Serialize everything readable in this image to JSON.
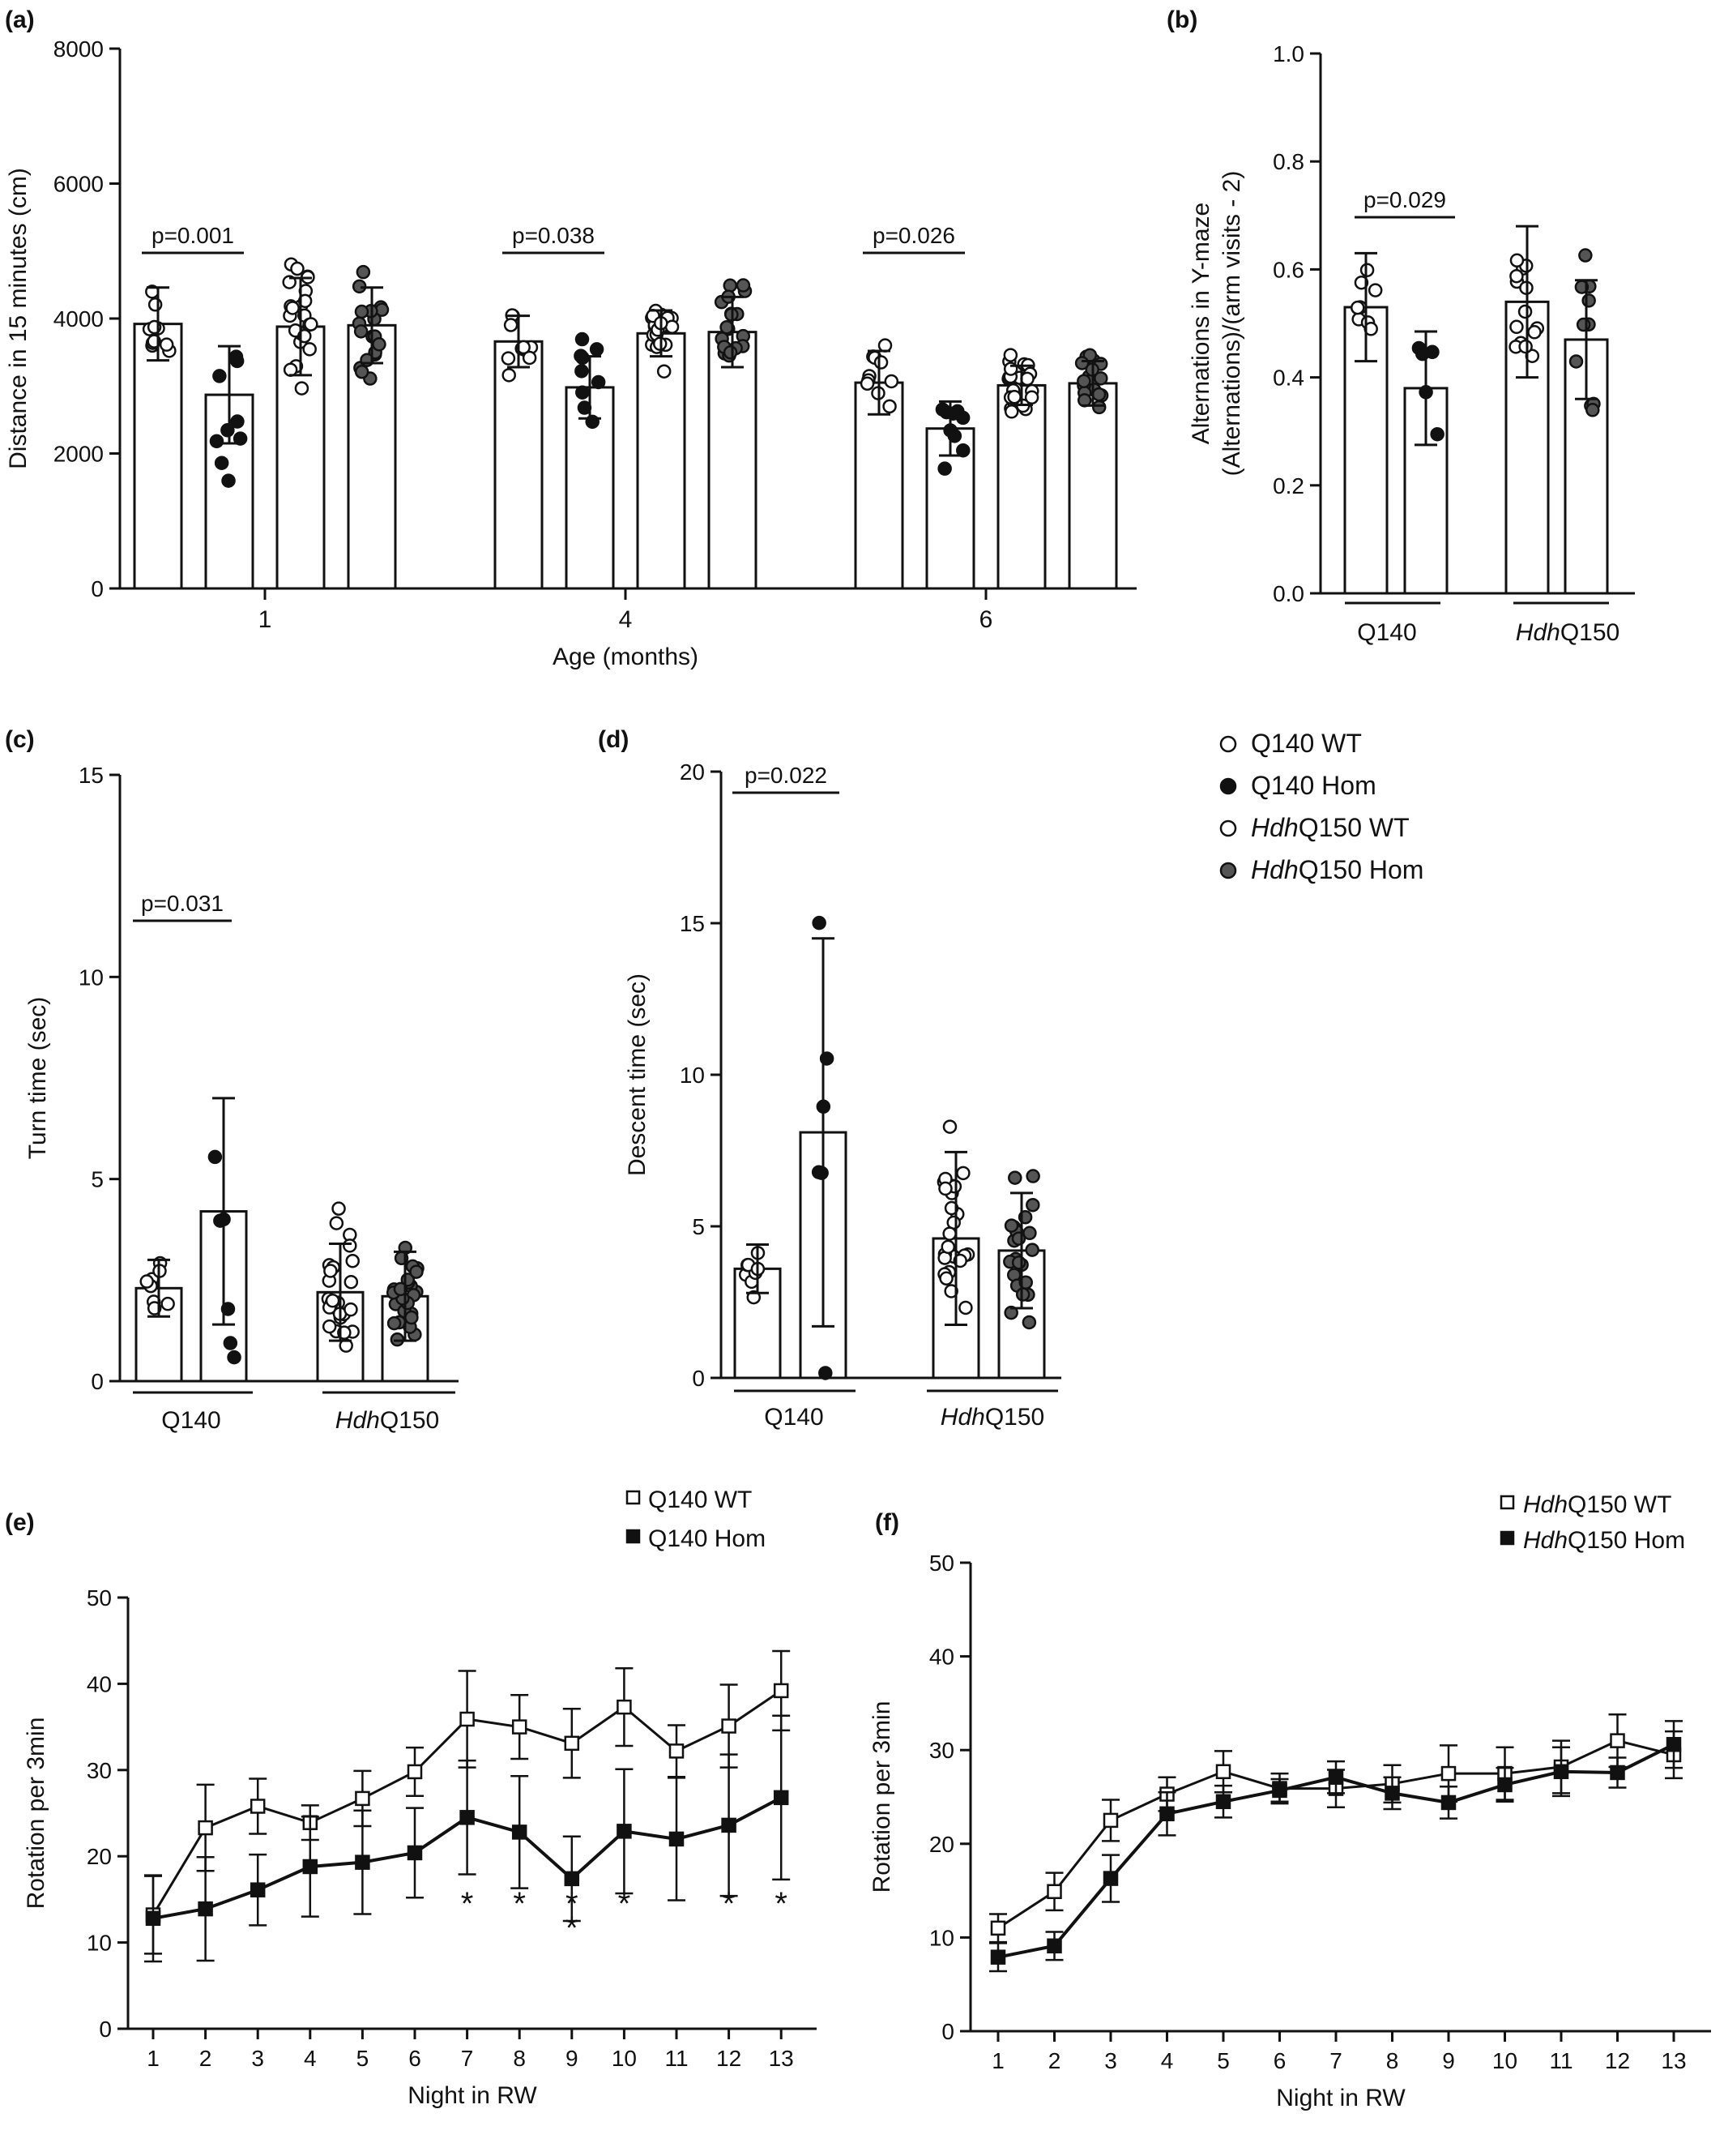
{
  "chart_data": [
    {
      "panel": "(a)",
      "type": "bar",
      "ylabel": "Distance in 15 minutes (cm)",
      "xlabel": "Age (months)",
      "ylim": [
        0,
        8000
      ],
      "yticks": [
        "0",
        "2000",
        "4000",
        "6000",
        "8000"
      ],
      "categories": [
        "1",
        "4",
        "6"
      ],
      "series": [
        {
          "name": "Q140 WT",
          "values": [
            3920,
            3660,
            3050
          ],
          "sd": [
            540,
            380,
            470
          ]
        },
        {
          "name": "Q140 Hom",
          "values": [
            2870,
            2980,
            2370
          ],
          "sd": [
            720,
            460,
            400
          ]
        },
        {
          "name": "HdhQ150 WT",
          "values": [
            3880,
            3780,
            3010
          ],
          "sd": [
            720,
            340,
            290
          ]
        },
        {
          "name": "HdhQ150 Hom",
          "values": [
            3900,
            3800,
            3040
          ],
          "sd": [
            560,
            520,
            330
          ]
        }
      ],
      "annotations": [
        "p=0.001",
        "p=0.038",
        "p=0.026"
      ]
    },
    {
      "panel": "(b)",
      "type": "bar",
      "ylabel": "Alternations in Y-maze (Alternations)/(arm visits - 2)",
      "ylim": [
        0,
        1.0
      ],
      "yticks": [
        "0.0",
        "0.2",
        "0.4",
        "0.6",
        "0.8",
        "1.0"
      ],
      "groups": [
        "Q140",
        "HdhQ150"
      ],
      "series": [
        {
          "name": "WT",
          "values": [
            0.53,
            0.54
          ],
          "sd": [
            0.1,
            0.14
          ]
        },
        {
          "name": "Hom",
          "values": [
            0.38,
            0.47
          ],
          "sd": [
            0.105,
            0.11
          ]
        }
      ],
      "annotations": [
        "p=0.029"
      ]
    },
    {
      "panel": "(c)",
      "type": "bar",
      "ylabel": "Turn time (sec)",
      "ylim": [
        0,
        15
      ],
      "yticks": [
        "0",
        "5",
        "10",
        "15"
      ],
      "groups": [
        "Q140",
        "HdhQ150"
      ],
      "series": [
        {
          "name": "WT",
          "values": [
            2.3,
            2.2
          ],
          "sd": [
            0.7,
            1.2
          ]
        },
        {
          "name": "Hom",
          "values": [
            4.2,
            2.1
          ],
          "sd": [
            2.8,
            1.1
          ]
        }
      ],
      "annotations": [
        "p=0.031"
      ]
    },
    {
      "panel": "(d)",
      "type": "bar",
      "ylabel": "Descent time (sec)",
      "ylim": [
        0,
        20
      ],
      "yticks": [
        "0",
        "5",
        "10",
        "15",
        "20"
      ],
      "groups": [
        "Q140",
        "HdhQ150"
      ],
      "series": [
        {
          "name": "WT",
          "values": [
            3.6,
            4.6
          ],
          "sd": [
            0.8,
            2.85
          ]
        },
        {
          "name": "Hom",
          "values": [
            8.1,
            4.2
          ],
          "sd": [
            6.4,
            1.9
          ]
        }
      ],
      "annotations": [
        "p=0.022"
      ]
    },
    {
      "panel": "(e)",
      "type": "line",
      "xlabel": "Night in RW",
      "ylabel": "Rotation per 3min",
      "ylim": [
        0,
        50
      ],
      "yticks": [
        "0",
        "10",
        "20",
        "30",
        "40",
        "50"
      ],
      "x": [
        "1",
        "2",
        "3",
        "4",
        "5",
        "6",
        "7",
        "8",
        "9",
        "10",
        "11",
        "12",
        "13"
      ],
      "series": [
        {
          "name": "Q140 WT",
          "marker": "open-square",
          "values": [
            13.2,
            23.3,
            25.8,
            23.9,
            26.7,
            29.8,
            35.9,
            35.0,
            33.1,
            37.3,
            32.2,
            35.1,
            39.2
          ],
          "sd": [
            4.5,
            5.0,
            3.2,
            2.0,
            3.2,
            2.8,
            5.6,
            3.7,
            4.0,
            4.5,
            3.0,
            4.8,
            4.6
          ]
        },
        {
          "name": "Q140 Hom",
          "marker": "filled-square",
          "values": [
            12.8,
            13.9,
            16.1,
            18.8,
            19.3,
            20.4,
            24.5,
            22.8,
            17.4,
            22.9,
            22.0,
            23.6,
            26.8
          ],
          "sd": [
            5.0,
            6.0,
            4.1,
            5.8,
            6.0,
            5.2,
            6.6,
            6.5,
            4.9,
            7.2,
            7.1,
            8.2,
            9.5
          ]
        }
      ],
      "annotations": [
        "*",
        "*",
        "*",
        "*",
        "*",
        "*",
        "*"
      ]
    },
    {
      "panel": "(f)",
      "type": "line",
      "xlabel": "Night in RW",
      "ylabel": "Rotation per 3min",
      "ylim": [
        0,
        50
      ],
      "yticks": [
        "0",
        "10",
        "20",
        "30",
        "40",
        "50"
      ],
      "x": [
        "1",
        "2",
        "3",
        "4",
        "5",
        "6",
        "7",
        "8",
        "9",
        "10",
        "11",
        "12",
        "13"
      ],
      "series": [
        {
          "name": "HdhQ150 WT",
          "marker": "open-square",
          "values": [
            11.0,
            14.9,
            22.5,
            25.3,
            27.7,
            25.9,
            25.9,
            26.4,
            27.5,
            27.5,
            28.2,
            31.0,
            29.5
          ],
          "sd": [
            1.5,
            2.0,
            2.2,
            1.8,
            2.2,
            1.6,
            2.0,
            2.0,
            3.0,
            2.8,
            2.8,
            2.8,
            2.5
          ]
        },
        {
          "name": "HdhQ150 Hom",
          "marker": "filled-square",
          "values": [
            7.9,
            9.1,
            16.3,
            23.2,
            24.5,
            25.7,
            27.1,
            25.4,
            24.4,
            26.3,
            27.7,
            27.6,
            30.6
          ],
          "sd": [
            1.5,
            1.5,
            2.5,
            2.3,
            1.7,
            1.2,
            1.7,
            1.7,
            1.7,
            1.8,
            2.6,
            1.6,
            2.5
          ]
        }
      ]
    }
  ],
  "legend_cd": {
    "items": [
      {
        "italic": "",
        "text": "Q140 WT"
      },
      {
        "italic": "",
        "text": "Q140 Hom"
      },
      {
        "italic": "Hdh",
        "text": "Q150 WT"
      },
      {
        "italic": "Hdh",
        "text": "Q150 Hom"
      }
    ]
  },
  "group_labels": {
    "q140": "Q140",
    "hdh_italic": "Hdh",
    "hdh_rest": "Q150"
  },
  "colors": {
    "q140_hom": "#111111",
    "hdh_hom": "#555555",
    "open": "#ffffff",
    "stroke": "#111111"
  }
}
